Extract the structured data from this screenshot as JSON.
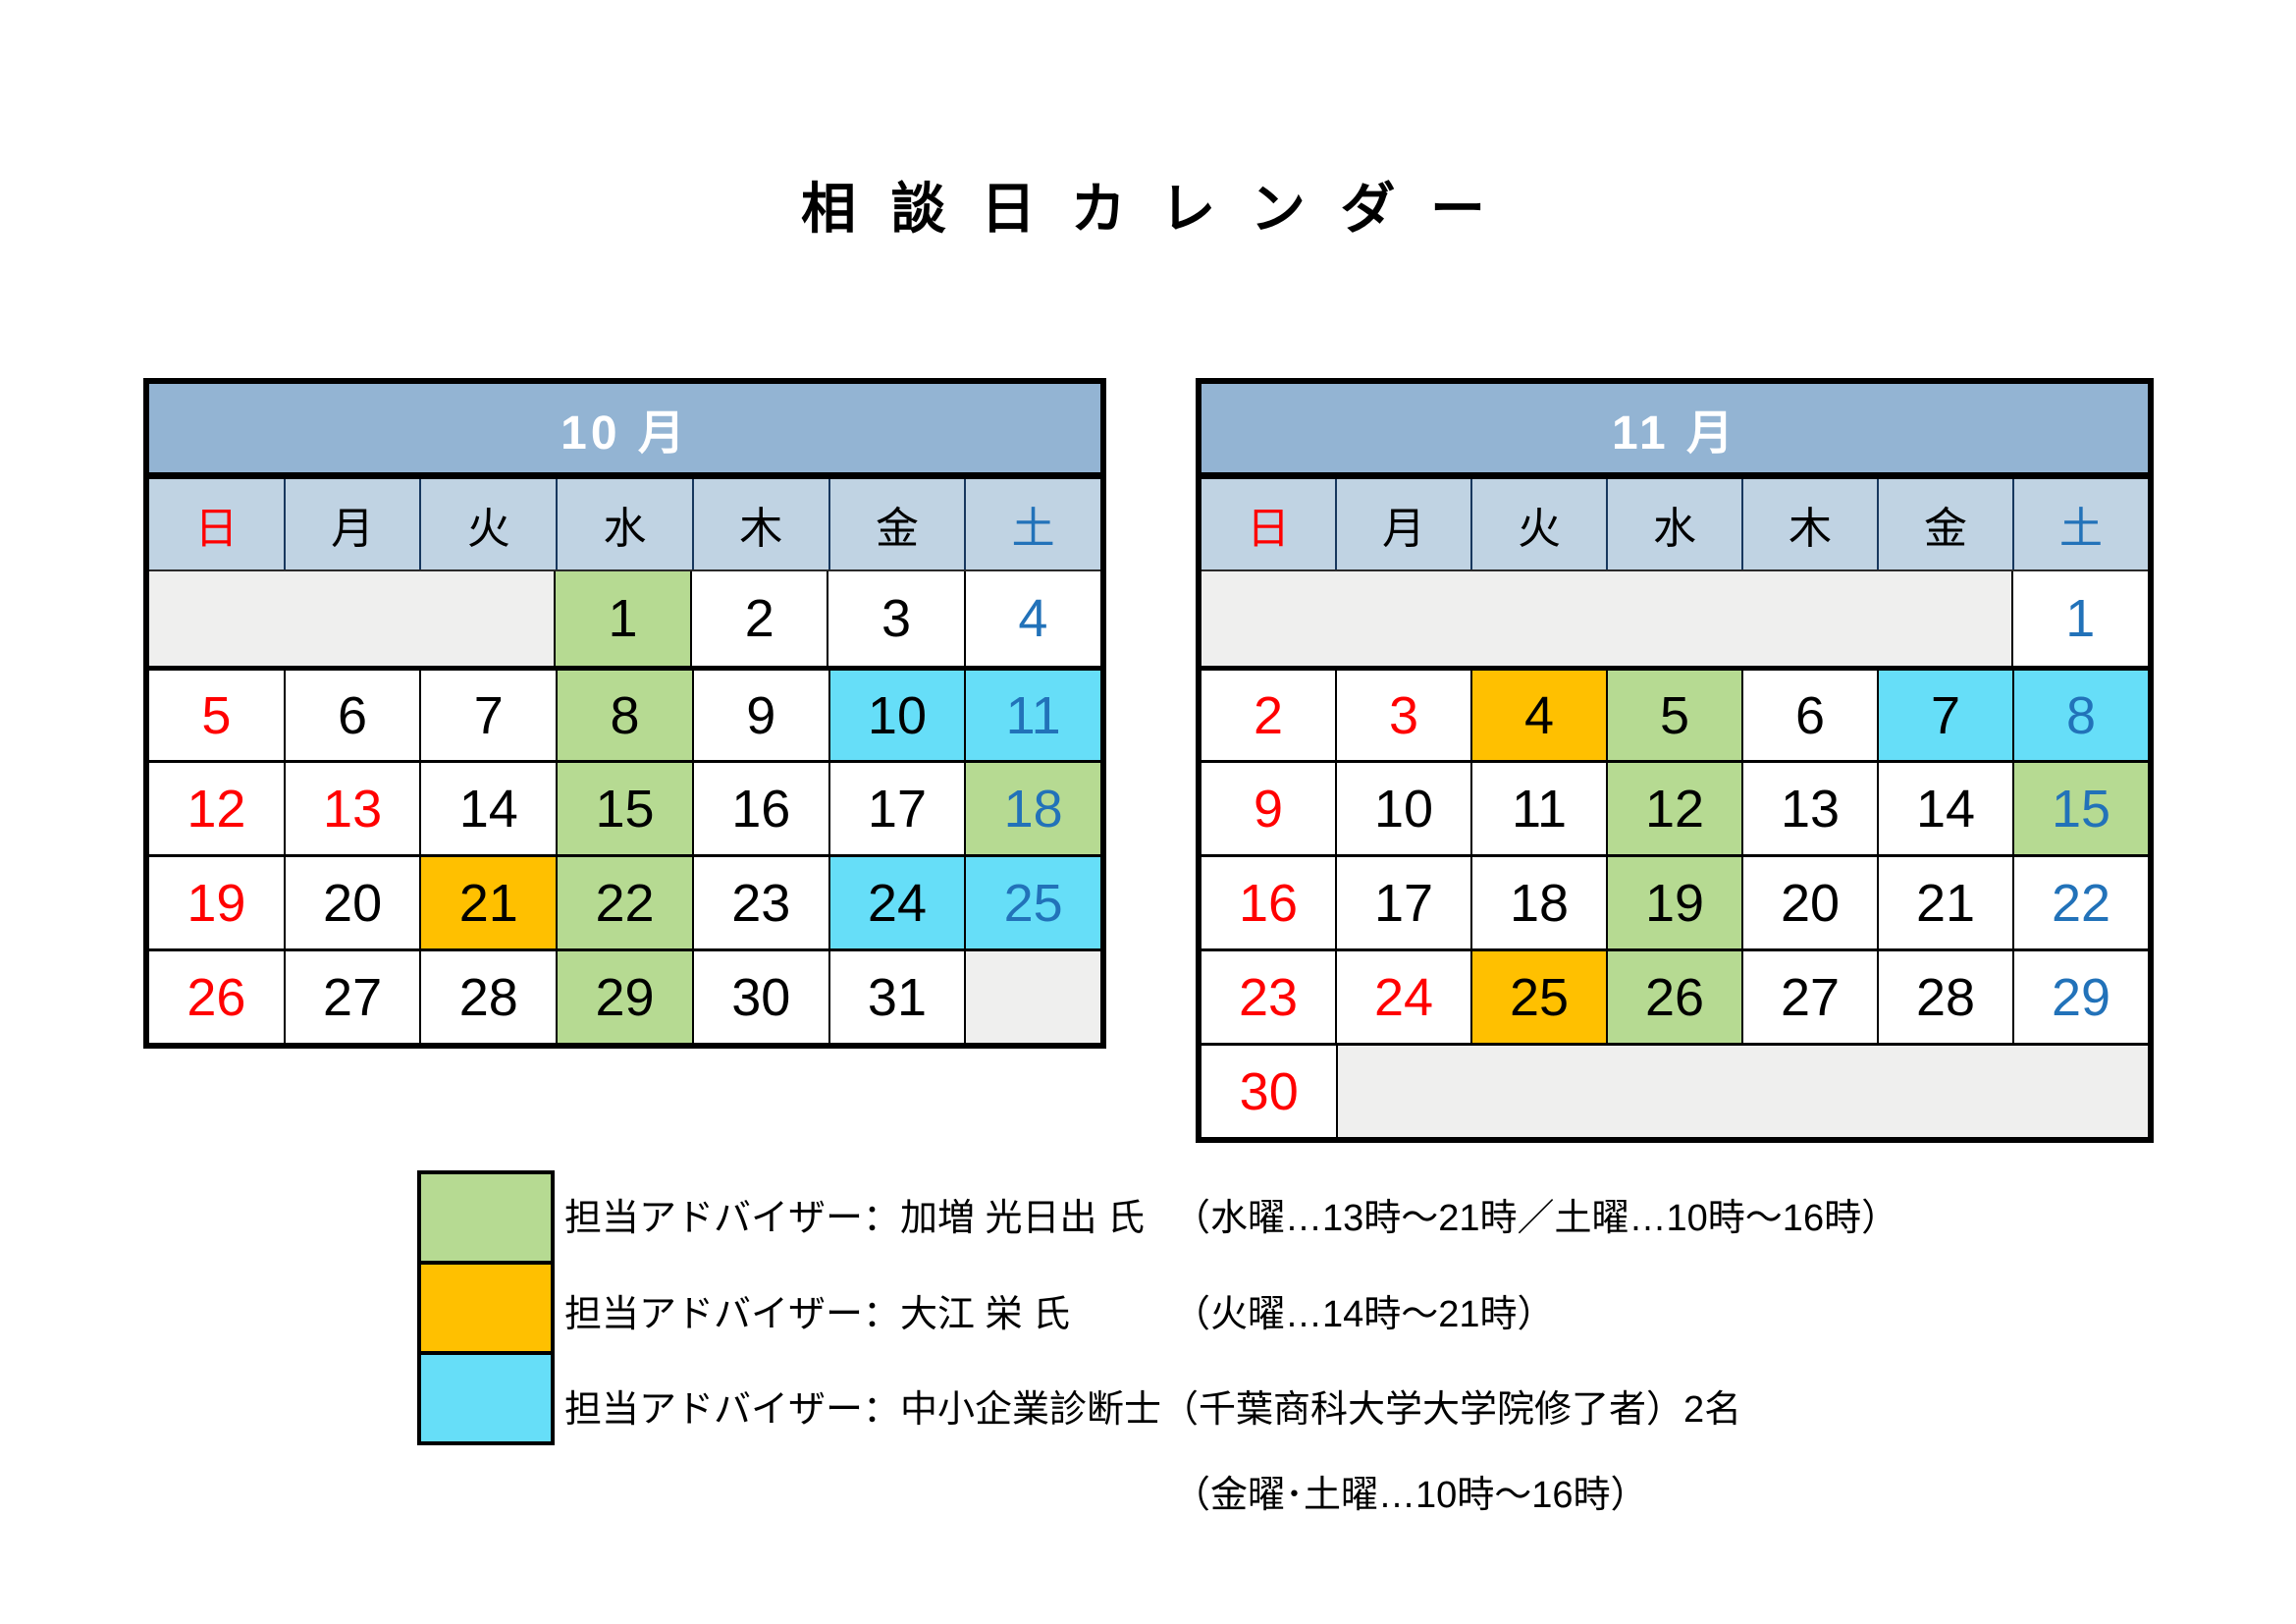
{
  "page": {
    "title": "相 談 日 カ レ ン ダ ー"
  },
  "weekdays": [
    {
      "en": "sun",
      "label": "日",
      "fg": "red"
    },
    {
      "en": "mon",
      "label": "月",
      "fg": "black"
    },
    {
      "en": "tue",
      "label": "火",
      "fg": "black"
    },
    {
      "en": "wed",
      "label": "水",
      "fg": "black"
    },
    {
      "en": "thu",
      "label": "木",
      "fg": "black"
    },
    {
      "en": "fri",
      "label": "金",
      "fg": "black"
    },
    {
      "en": "sat",
      "label": "土",
      "fg": "blue"
    }
  ],
  "calendars": [
    {
      "id": "october",
      "title": "10 月",
      "weeks": [
        [
          {
            "blank": 3
          },
          {
            "day": "1",
            "bg": "green",
            "fg": "black"
          },
          {
            "day": "2",
            "bg": "white",
            "fg": "black"
          },
          {
            "day": "3",
            "bg": "white",
            "fg": "black"
          },
          {
            "day": "4",
            "bg": "white",
            "fg": "blue"
          }
        ],
        [
          {
            "day": "5",
            "bg": "white",
            "fg": "red"
          },
          {
            "day": "6",
            "bg": "white",
            "fg": "black"
          },
          {
            "day": "7",
            "bg": "white",
            "fg": "black"
          },
          {
            "day": "8",
            "bg": "green",
            "fg": "black"
          },
          {
            "day": "9",
            "bg": "white",
            "fg": "black"
          },
          {
            "day": "10",
            "bg": "cyan",
            "fg": "black"
          },
          {
            "day": "11",
            "bg": "cyan",
            "fg": "blue"
          }
        ],
        [
          {
            "day": "12",
            "bg": "white",
            "fg": "red"
          },
          {
            "day": "13",
            "bg": "white",
            "fg": "red"
          },
          {
            "day": "14",
            "bg": "white",
            "fg": "black"
          },
          {
            "day": "15",
            "bg": "green",
            "fg": "black"
          },
          {
            "day": "16",
            "bg": "white",
            "fg": "black"
          },
          {
            "day": "17",
            "bg": "white",
            "fg": "black"
          },
          {
            "day": "18",
            "bg": "green",
            "fg": "blue"
          }
        ],
        [
          {
            "day": "19",
            "bg": "white",
            "fg": "red"
          },
          {
            "day": "20",
            "bg": "white",
            "fg": "black"
          },
          {
            "day": "21",
            "bg": "orange",
            "fg": "black"
          },
          {
            "day": "22",
            "bg": "green",
            "fg": "black"
          },
          {
            "day": "23",
            "bg": "white",
            "fg": "black"
          },
          {
            "day": "24",
            "bg": "cyan",
            "fg": "black"
          },
          {
            "day": "25",
            "bg": "cyan",
            "fg": "blue"
          }
        ],
        [
          {
            "day": "26",
            "bg": "white",
            "fg": "red"
          },
          {
            "day": "27",
            "bg": "white",
            "fg": "black"
          },
          {
            "day": "28",
            "bg": "white",
            "fg": "black"
          },
          {
            "day": "29",
            "bg": "green",
            "fg": "black"
          },
          {
            "day": "30",
            "bg": "white",
            "fg": "black"
          },
          {
            "day": "31",
            "bg": "white",
            "fg": "black"
          },
          {
            "blank": 1
          }
        ]
      ]
    },
    {
      "id": "november",
      "title": "11 月",
      "weeks": [
        [
          {
            "blank": 6
          },
          {
            "day": "1",
            "bg": "white",
            "fg": "blue"
          }
        ],
        [
          {
            "day": "2",
            "bg": "white",
            "fg": "red"
          },
          {
            "day": "3",
            "bg": "white",
            "fg": "red"
          },
          {
            "day": "4",
            "bg": "orange",
            "fg": "black"
          },
          {
            "day": "5",
            "bg": "green",
            "fg": "black"
          },
          {
            "day": "6",
            "bg": "white",
            "fg": "black"
          },
          {
            "day": "7",
            "bg": "cyan",
            "fg": "black"
          },
          {
            "day": "8",
            "bg": "cyan",
            "fg": "blue"
          }
        ],
        [
          {
            "day": "9",
            "bg": "white",
            "fg": "red"
          },
          {
            "day": "10",
            "bg": "white",
            "fg": "black"
          },
          {
            "day": "11",
            "bg": "white",
            "fg": "black"
          },
          {
            "day": "12",
            "bg": "green",
            "fg": "black"
          },
          {
            "day": "13",
            "bg": "white",
            "fg": "black"
          },
          {
            "day": "14",
            "bg": "white",
            "fg": "black"
          },
          {
            "day": "15",
            "bg": "green",
            "fg": "blue"
          }
        ],
        [
          {
            "day": "16",
            "bg": "white",
            "fg": "red"
          },
          {
            "day": "17",
            "bg": "white",
            "fg": "black"
          },
          {
            "day": "18",
            "bg": "white",
            "fg": "black"
          },
          {
            "day": "19",
            "bg": "green",
            "fg": "black"
          },
          {
            "day": "20",
            "bg": "white",
            "fg": "black"
          },
          {
            "day": "21",
            "bg": "white",
            "fg": "black"
          },
          {
            "day": "22",
            "bg": "white",
            "fg": "blue"
          }
        ],
        [
          {
            "day": "23",
            "bg": "white",
            "fg": "red"
          },
          {
            "day": "24",
            "bg": "white",
            "fg": "red"
          },
          {
            "day": "25",
            "bg": "orange",
            "fg": "black"
          },
          {
            "day": "26",
            "bg": "green",
            "fg": "black"
          },
          {
            "day": "27",
            "bg": "white",
            "fg": "black"
          },
          {
            "day": "28",
            "bg": "white",
            "fg": "black"
          },
          {
            "day": "29",
            "bg": "white",
            "fg": "blue"
          }
        ],
        [
          {
            "day": "30",
            "bg": "white",
            "fg": "red"
          },
          {
            "blank": 6
          }
        ]
      ]
    }
  ],
  "legend": {
    "swatches": [
      "green",
      "orange",
      "cyan"
    ],
    "rows": [
      {
        "swatch": "green",
        "label": "担当アドバイザー：加増 光日出 氏",
        "note": "（水曜…13時～21時／土曜…10時～16時）"
      },
      {
        "swatch": "orange",
        "label": "担当アドバイザー：大江 栄 氏",
        "note": "（火曜…14時～21時）"
      },
      {
        "swatch": "cyan",
        "label": "担当アドバイザー：中小企業診断士",
        "note": "（千葉商科大学大学院修了者）2名"
      },
      {
        "swatch": "",
        "label": "",
        "note": "（金曜･土曜…10時～16時）"
      }
    ]
  },
  "colors": {
    "header_bg": "#93b4d3",
    "weekday_bg": "#c0d3e3",
    "blank_bg": "#efefee",
    "white": "#ffffff",
    "green": "#b6da92",
    "orange": "#ffc000",
    "cyan": "#66def8",
    "red": "#ff0000",
    "blue": "#2272b9",
    "black": "#000000"
  }
}
